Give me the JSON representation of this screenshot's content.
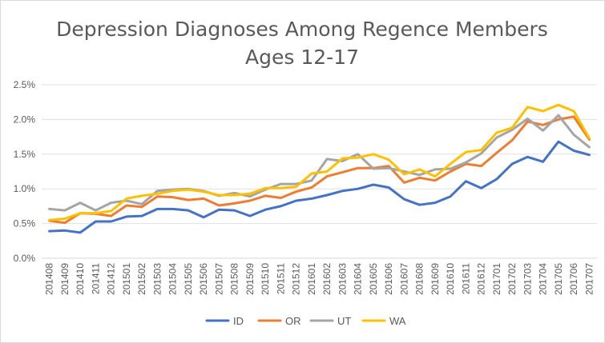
{
  "chart_data": {
    "type": "line",
    "title": "Depression Diagnoses Among Regence Members",
    "subtitle": "Ages 12-17",
    "x": [
      "201408",
      "201409",
      "201410",
      "201411",
      "201412",
      "201501",
      "201502",
      "201503",
      "201504",
      "201505",
      "201506",
      "201507",
      "201508",
      "201509",
      "201510",
      "201511",
      "201512",
      "201601",
      "201602",
      "201603",
      "201604",
      "201605",
      "201606",
      "201607",
      "201608",
      "201609",
      "201610",
      "201611",
      "201612",
      "201701",
      "201702",
      "201703",
      "201704",
      "201705",
      "201706",
      "201707"
    ],
    "y_ticks": [
      "0.0%",
      "0.5%",
      "1.0%",
      "1.5%",
      "2.0%",
      "2.5%"
    ],
    "ylim": [
      0,
      2.5
    ],
    "y_unit": "%",
    "grid": true,
    "legend_position": "bottom",
    "series": [
      {
        "name": "ID",
        "color": "#4472c4",
        "values": [
          0.39,
          0.4,
          0.37,
          0.53,
          0.53,
          0.6,
          0.61,
          0.71,
          0.71,
          0.69,
          0.59,
          0.7,
          0.69,
          0.61,
          0.7,
          0.75,
          0.83,
          0.86,
          0.91,
          0.97,
          1.0,
          1.06,
          1.02,
          0.85,
          0.77,
          0.8,
          0.89,
          1.11,
          1.01,
          1.14,
          1.36,
          1.46,
          1.39,
          1.68,
          1.55,
          1.49
        ]
      },
      {
        "name": "OR",
        "color": "#ed7d31",
        "values": [
          0.54,
          0.51,
          0.65,
          0.64,
          0.61,
          0.76,
          0.74,
          0.89,
          0.88,
          0.84,
          0.86,
          0.76,
          0.79,
          0.83,
          0.9,
          0.87,
          0.96,
          1.02,
          1.18,
          1.24,
          1.3,
          1.3,
          1.33,
          1.09,
          1.16,
          1.12,
          1.25,
          1.36,
          1.33,
          1.52,
          1.7,
          1.97,
          1.92,
          2.0,
          2.04,
          1.71
        ]
      },
      {
        "name": "UT",
        "color": "#a5a5a5",
        "values": [
          0.71,
          0.69,
          0.8,
          0.69,
          0.8,
          0.83,
          0.78,
          0.97,
          0.99,
          1.0,
          0.97,
          0.9,
          0.94,
          0.89,
          0.99,
          1.07,
          1.07,
          1.12,
          1.43,
          1.4,
          1.5,
          1.29,
          1.3,
          1.25,
          1.2,
          1.28,
          1.29,
          1.38,
          1.51,
          1.74,
          1.85,
          2.01,
          1.84,
          2.06,
          1.78,
          1.6
        ]
      },
      {
        "name": "WA",
        "color": "#ffc000",
        "values": [
          0.55,
          0.57,
          0.65,
          0.65,
          0.68,
          0.86,
          0.9,
          0.93,
          0.97,
          0.99,
          0.96,
          0.91,
          0.91,
          0.93,
          1.01,
          1.01,
          1.03,
          1.22,
          1.25,
          1.44,
          1.45,
          1.5,
          1.42,
          1.21,
          1.28,
          1.18,
          1.36,
          1.53,
          1.56,
          1.81,
          1.88,
          2.18,
          2.12,
          2.21,
          2.12,
          1.73
        ]
      }
    ]
  }
}
